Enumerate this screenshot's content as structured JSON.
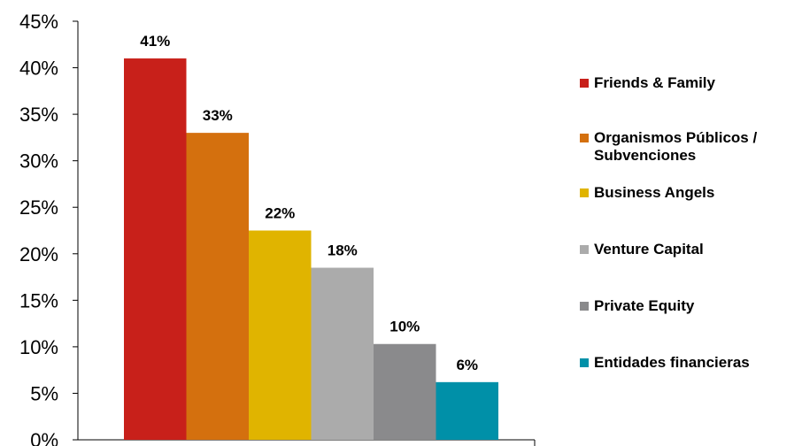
{
  "chart_data": {
    "type": "bar",
    "title": "",
    "xlabel": "",
    "ylabel": "",
    "ylim": [
      0,
      45
    ],
    "yticks": [
      "0%",
      "5%",
      "10%",
      "15%",
      "20%",
      "25%",
      "30%",
      "35%",
      "40%",
      "45%"
    ],
    "legend_position": "right",
    "grid": false,
    "series": [
      {
        "name": "Friends & Family",
        "value": 41,
        "label": "41%",
        "color": "#C8201A"
      },
      {
        "name": "Organismos Públicos / Subvenciones",
        "value": 33,
        "label": "33%",
        "color": "#D4700E"
      },
      {
        "name": "Business Angels",
        "value": 22.5,
        "label": "22%",
        "color": "#E0B400"
      },
      {
        "name": "Venture Capital",
        "value": 18.5,
        "label": "18%",
        "color": "#ABABAB"
      },
      {
        "name": "Private Equity",
        "value": 10.3,
        "label": "10%",
        "color": "#8A8A8C"
      },
      {
        "name": "Entidades financieras",
        "value": 6.2,
        "label": "6%",
        "color": "#0090A8"
      }
    ]
  }
}
